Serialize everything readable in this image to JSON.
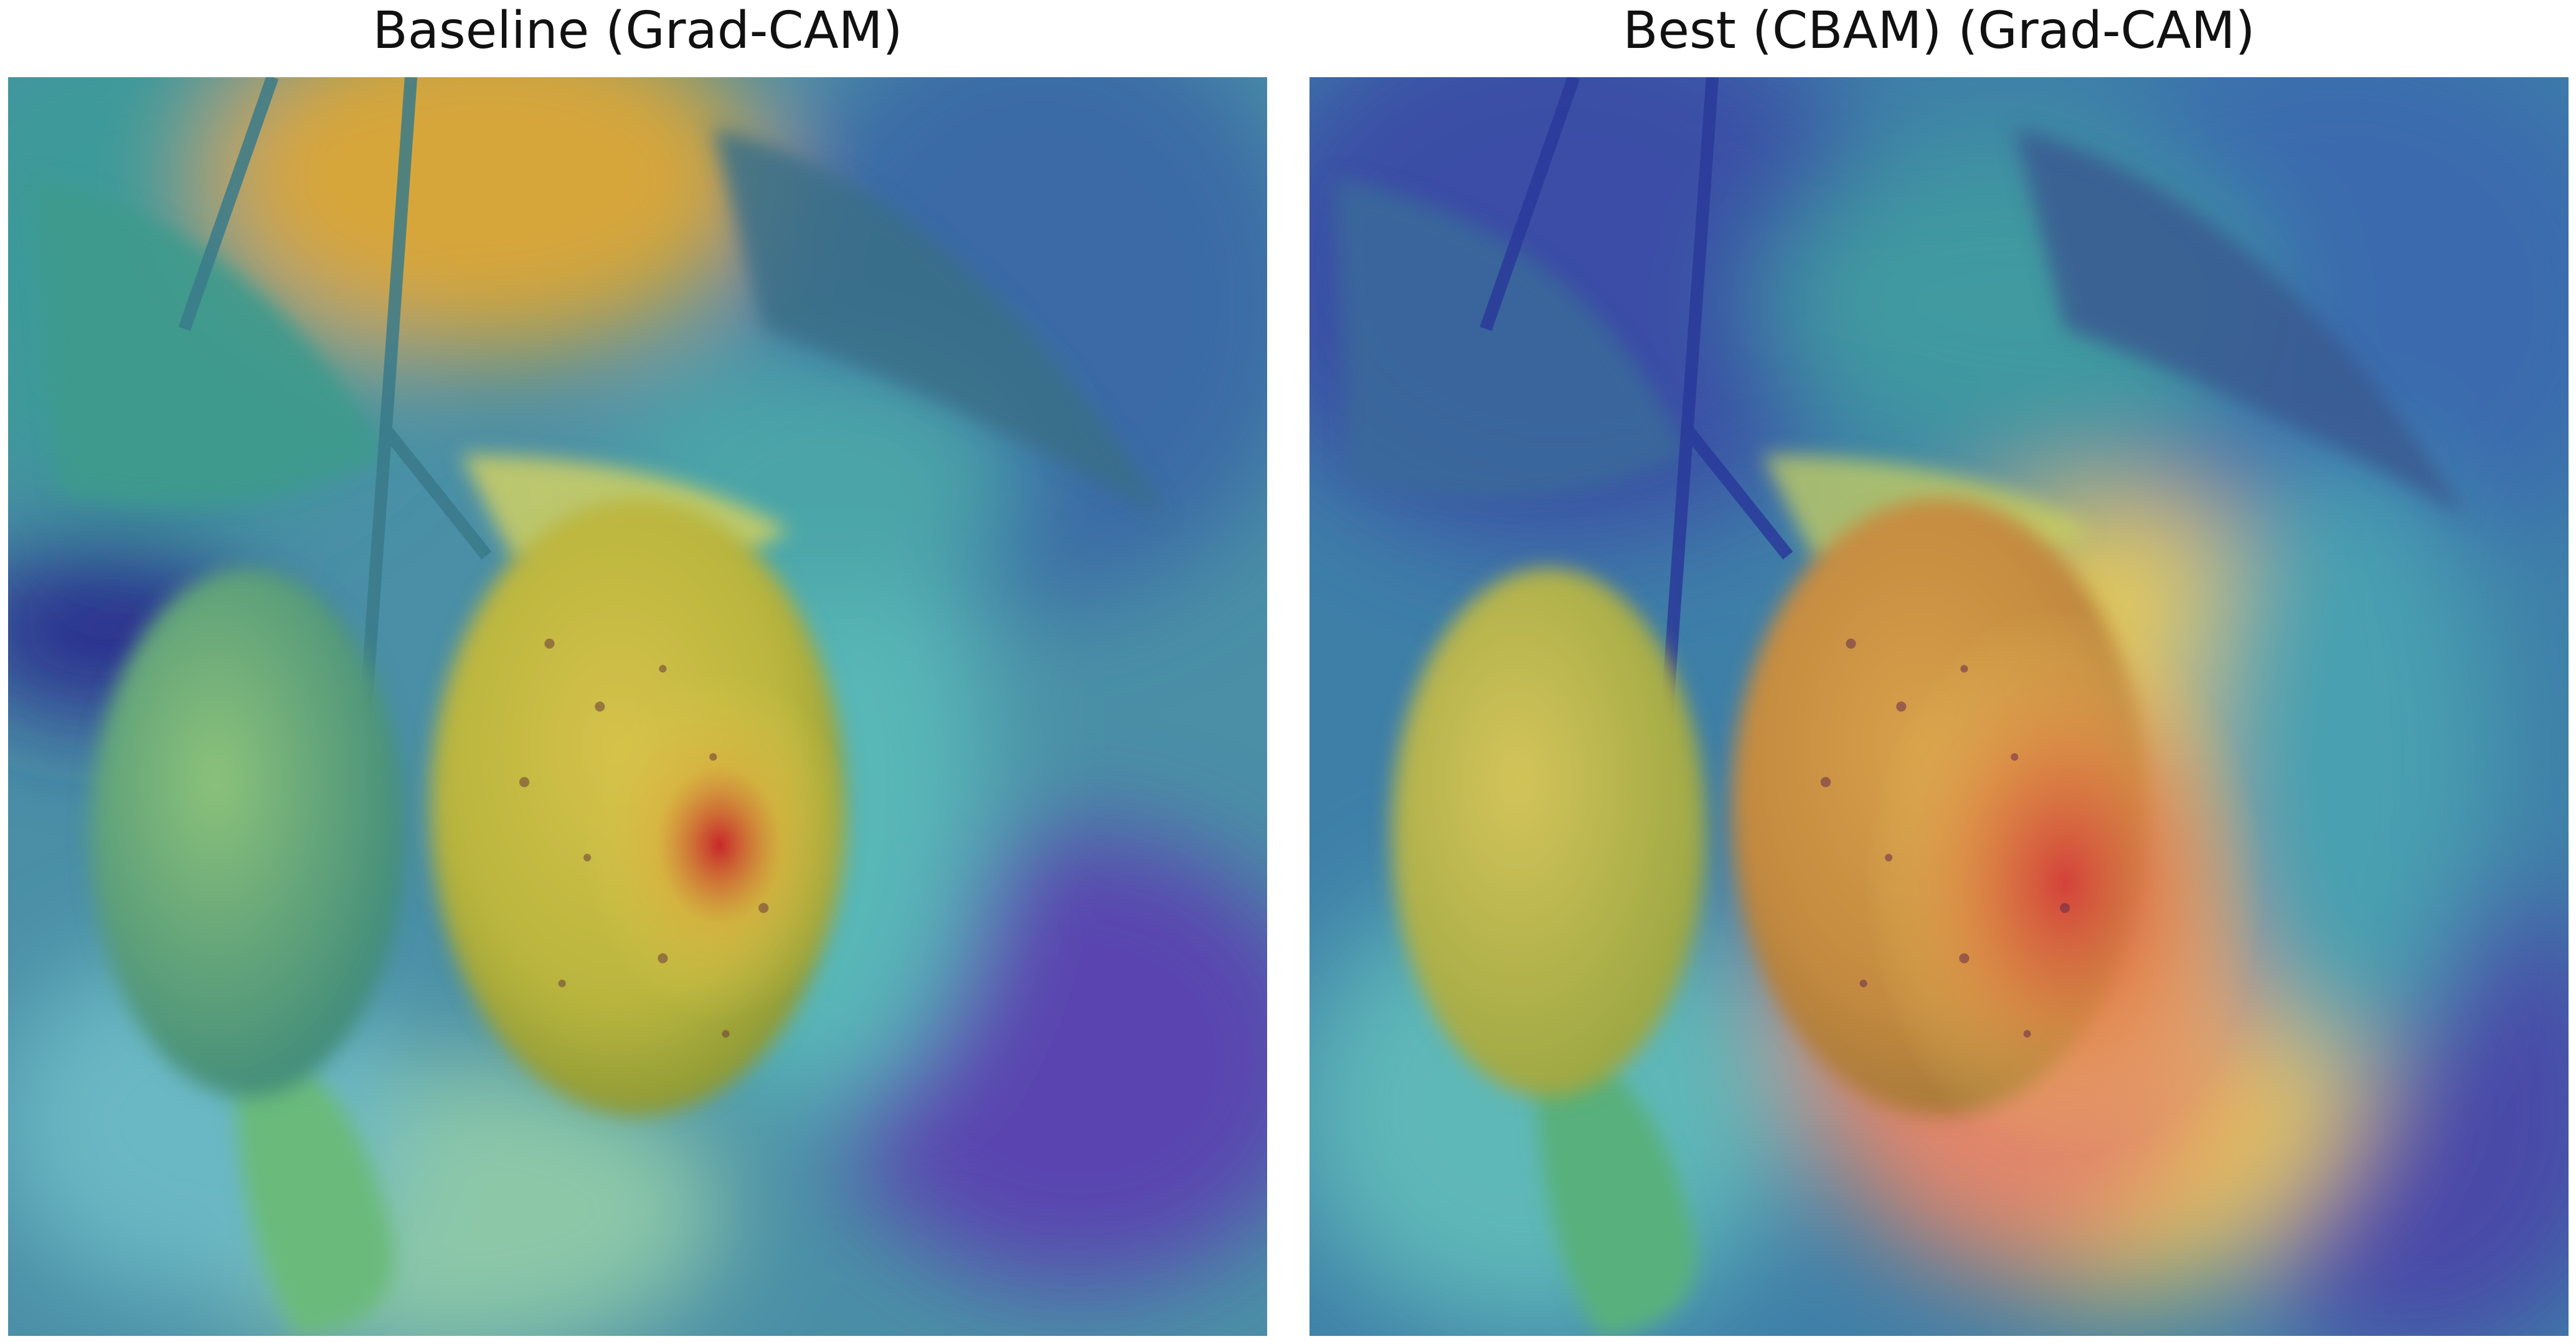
{
  "figure": {
    "panels": [
      {
        "title": "Baseline (Grad-CAM)",
        "image": "grad-cam heatmap overlay on guava fruits",
        "heatmap_colors": [
          "#2b2f9c",
          "#3a8fb0",
          "#4fc8b0",
          "#e3d44a",
          "#d2392b"
        ]
      },
      {
        "title": "Best (CBAM) (Grad-CAM)",
        "image": "grad-cam heatmap overlay on guava fruits",
        "heatmap_colors": [
          "#2b2f9c",
          "#3a8fb0",
          "#4fc8b0",
          "#e3d44a",
          "#d2392b"
        ]
      }
    ]
  }
}
